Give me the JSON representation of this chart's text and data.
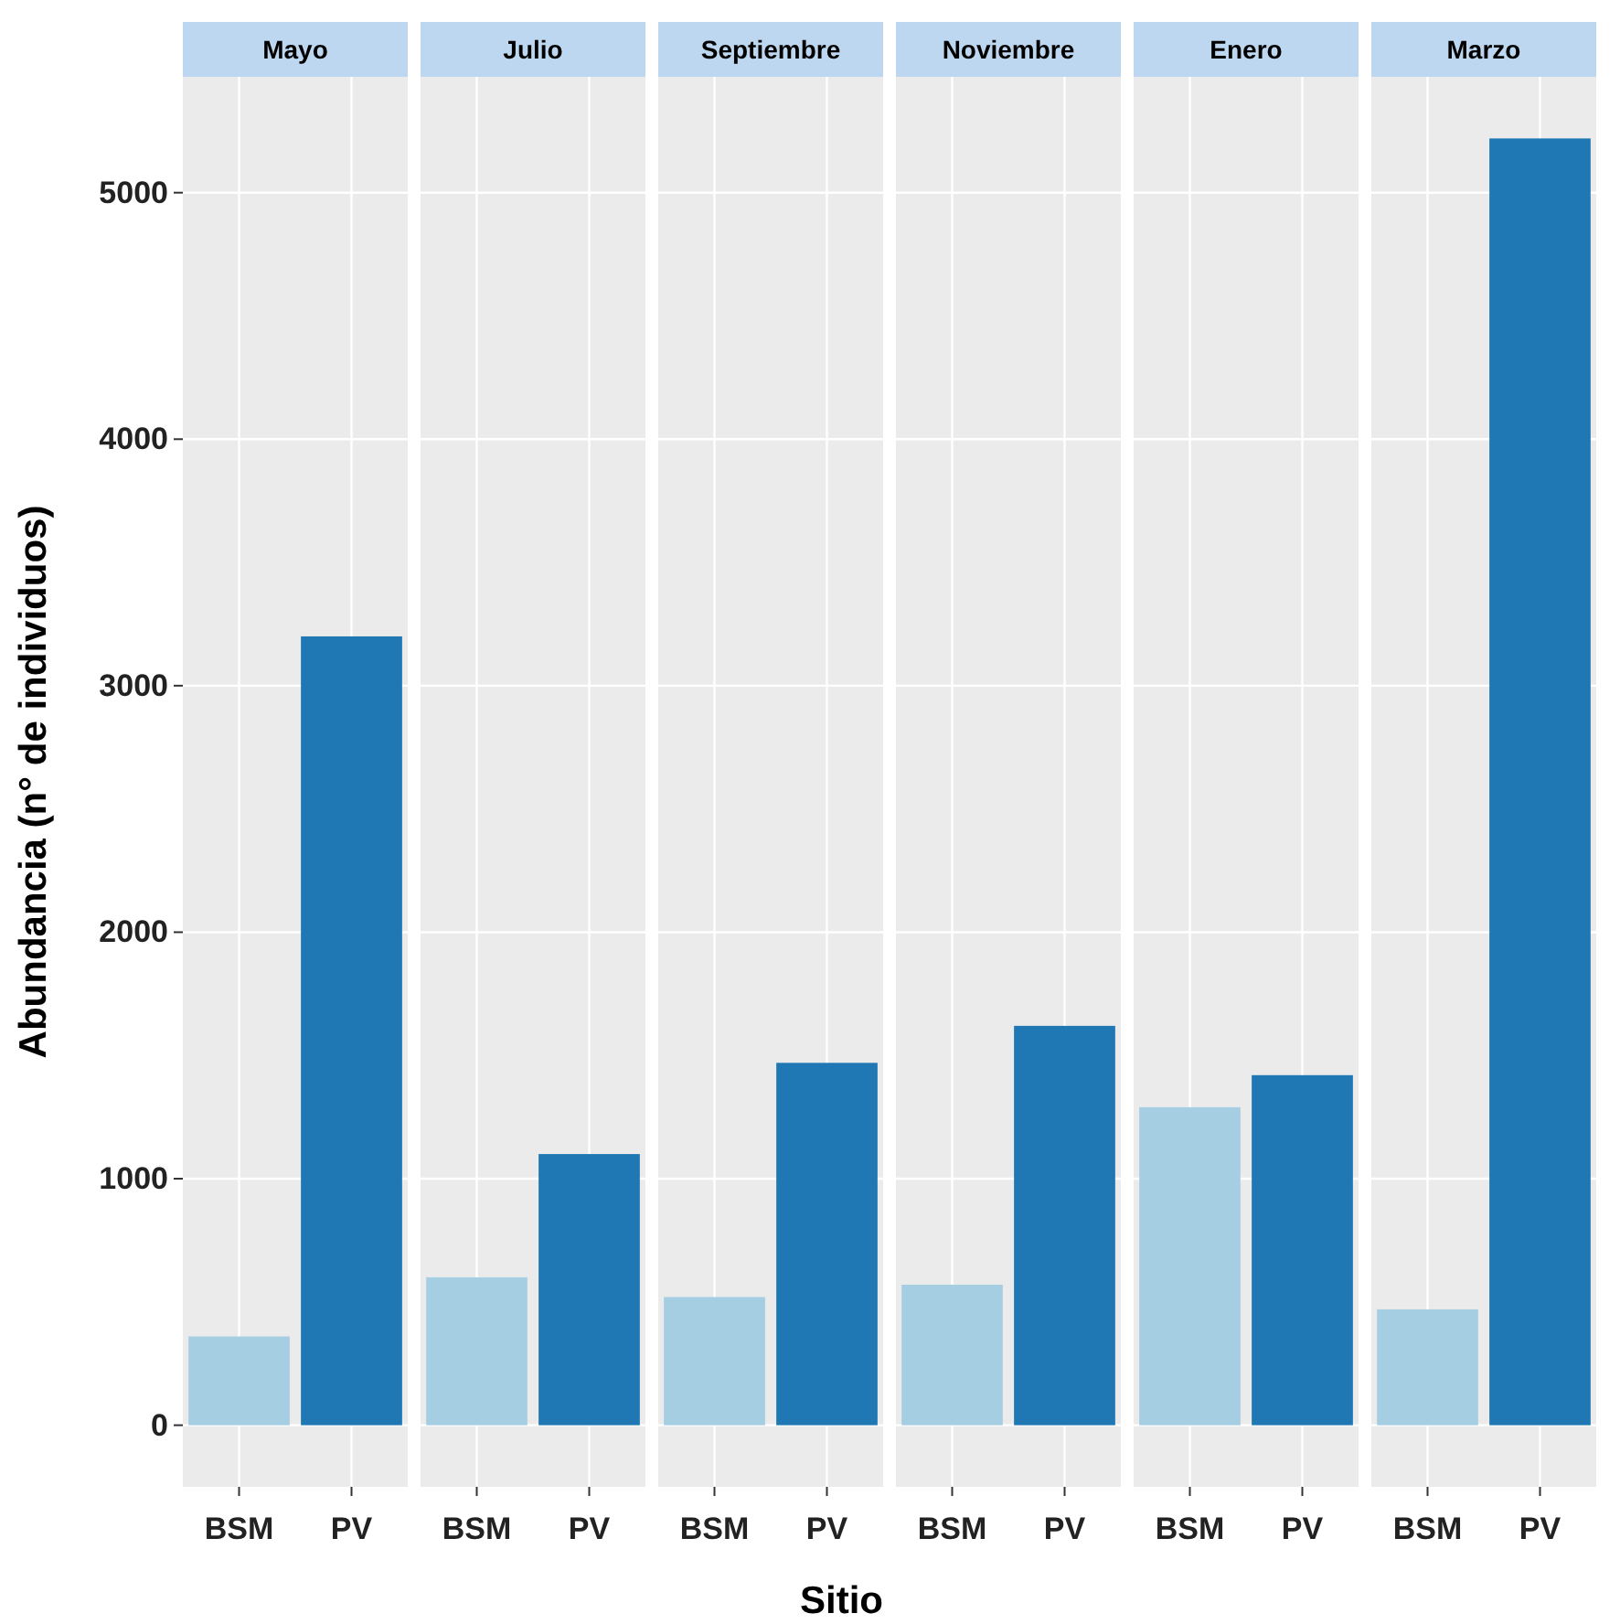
{
  "chart_data": [
    {
      "type": "bar",
      "title": "Mayo",
      "ylabel": "Abundancia (n° de individuos)",
      "categories": [
        "BSM",
        "PV"
      ],
      "values": [
        360,
        3200
      ],
      "colors": [
        "#a6cee3",
        "#1f78b4"
      ],
      "ylim": [
        -250,
        5470
      ],
      "yticks": [
        0,
        1000,
        2000,
        3000,
        4000,
        5000
      ],
      "grid": true
    },
    {
      "type": "bar",
      "title": "Julio",
      "categories": [
        "BSM",
        "PV"
      ],
      "values": [
        600,
        1100
      ],
      "colors": [
        "#a6cee3",
        "#1f78b4"
      ],
      "ylim": [
        -250,
        5470
      ],
      "yticks": [
        0,
        1000,
        2000,
        3000,
        4000,
        5000
      ],
      "grid": true,
      "tick_labels": "x"
    },
    {
      "type": "bar",
      "title": "Septiembre",
      "xlabel": "Sitio",
      "categories": [
        "BSM",
        "PV"
      ],
      "values": [
        520,
        1470
      ],
      "colors": [
        "#a6cee3",
        "#1f78b4"
      ],
      "ylim": [
        -250,
        5470
      ],
      "yticks": [
        0,
        1000,
        2000,
        3000,
        4000,
        5000
      ],
      "grid": true,
      "tick_labels": "x"
    },
    {
      "type": "bar",
      "title": "Noviembre",
      "categories": [
        "BSM",
        "PV"
      ],
      "values": [
        570,
        1620
      ],
      "colors": [
        "#a6cee3",
        "#1f78b4"
      ],
      "ylim": [
        -250,
        5470
      ],
      "yticks": [
        0,
        1000,
        2000,
        3000,
        4000,
        5000
      ],
      "grid": true,
      "tick_labels": "x"
    },
    {
      "type": "bar",
      "title": "Enero",
      "categories": [
        "BSM",
        "PV"
      ],
      "values": [
        1290,
        1420
      ],
      "colors": [
        "#a6cee3",
        "#1f78b4"
      ],
      "ylim": [
        -250,
        5470
      ],
      "yticks": [
        0,
        1000,
        2000,
        3000,
        4000,
        5000
      ],
      "grid": true,
      "tick_labels": "x"
    },
    {
      "type": "bar",
      "title": "Marzo",
      "categories": [
        "BSM",
        "PV"
      ],
      "values": [
        470,
        5220
      ],
      "colors": [
        "#a6cee3",
        "#1f78b4"
      ],
      "ylim": [
        -250,
        5470
      ],
      "yticks": [
        0,
        1000,
        2000,
        3000,
        4000,
        5000
      ],
      "grid": true,
      "tick_labels": "x"
    }
  ]
}
